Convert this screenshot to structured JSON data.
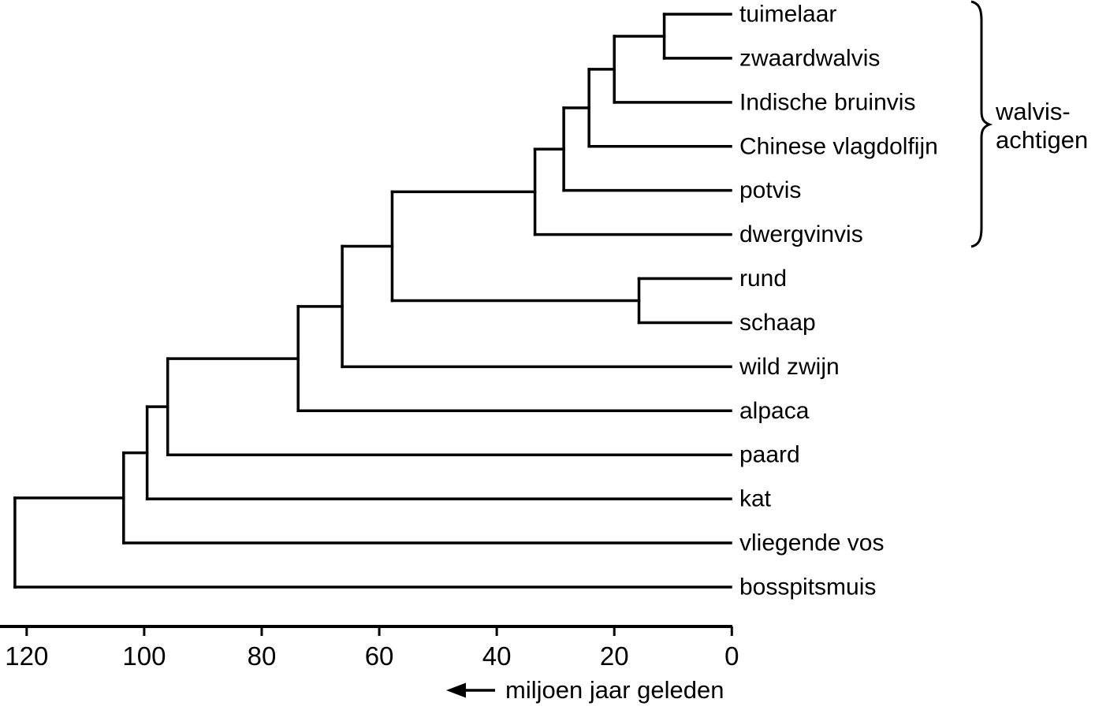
{
  "diagram_type": "phylogenetic-tree",
  "colors": {
    "line": "#000000",
    "text": "#000000",
    "background": "#ffffff"
  },
  "chart_data": {
    "type": "cladogram",
    "orientation": "root-left-tips-right",
    "tips": [
      "tuimelaar",
      "zwaardwalvis",
      "Indische bruinvis",
      "Chinese vlagdolfijn",
      "potvis",
      "dwergvinvis",
      "rund",
      "schaap",
      "wild zwijn",
      "alpaca",
      "paard",
      "kat",
      "vliegende vos",
      "bosspitsmuis"
    ],
    "time_axis": {
      "label": "miljoen jaar geleden",
      "ticks": [
        120,
        100,
        80,
        60,
        40,
        20,
        0
      ],
      "range_mya": [
        124.5,
        0
      ],
      "direction": "older-left-to-present-right",
      "arrow": "left"
    },
    "clade_bracket": {
      "label": "walvis-achtigen",
      "label_lines": [
        "walvis-",
        "achtigen"
      ],
      "tips_covered": [
        "tuimelaar",
        "zwaardwalvis",
        "Indische bruinvis",
        "Chinese vlagdolfijn",
        "potvis",
        "dwergvinvis"
      ]
    },
    "divergence_times_mya": {
      "root_bosspitsmuis_vs_rest": 122,
      "vliegende_vos_split": 103.5,
      "kat_split": 99.5,
      "paard_split": 96,
      "alpaca_split": 73.8,
      "wild_zwijn_split": 66.3,
      "walvisachtigen_vs_rund_schaap": 57.8,
      "dwergvinvis_split": 33.5,
      "potvis_split": 28.6,
      "chinese_vlagdolfijn_split": 24.3,
      "indische_bruinvis_split": 20,
      "tuimelaar_vs_zwaardwalvis": 11.5,
      "rund_vs_schaap": 15.8
    },
    "tree": {
      "age": 122,
      "children": [
        {
          "age": 103.5,
          "children": [
            {
              "age": 99.5,
              "children": [
                {
                  "age": 96,
                  "children": [
                    {
                      "age": 73.8,
                      "children": [
                        {
                          "age": 66.3,
                          "children": [
                            {
                              "age": 57.8,
                              "children": [
                                {
                                  "age": 33.5,
                                  "children": [
                                    {
                                      "age": 28.6,
                                      "children": [
                                        {
                                          "age": 24.3,
                                          "children": [
                                            {
                                              "age": 20,
                                              "children": [
                                                {
                                                  "age": 11.5,
                                                  "children": [
                                                    {
                                                      "name": "tuimelaar"
                                                    },
                                                    {
                                                      "name": "zwaardwalvis"
                                                    }
                                                  ]
                                                },
                                                {
                                                  "name": "Indische bruinvis"
                                                }
                                              ]
                                            },
                                            {
                                              "name": "Chinese vlagdolfijn"
                                            }
                                          ]
                                        },
                                        {
                                          "name": "potvis"
                                        }
                                      ]
                                    },
                                    {
                                      "name": "dwergvinvis"
                                    }
                                  ]
                                },
                                {
                                  "age": 15.8,
                                  "children": [
                                    {
                                      "name": "rund"
                                    },
                                    {
                                      "name": "schaap"
                                    }
                                  ]
                                }
                              ]
                            },
                            {
                              "name": "wild zwijn"
                            }
                          ]
                        },
                        {
                          "name": "alpaca"
                        }
                      ]
                    },
                    {
                      "name": "paard"
                    }
                  ]
                },
                {
                  "name": "kat"
                }
              ]
            },
            {
              "name": "vliegende vos"
            }
          ]
        },
        {
          "name": "bosspitsmuis"
        }
      ]
    }
  }
}
